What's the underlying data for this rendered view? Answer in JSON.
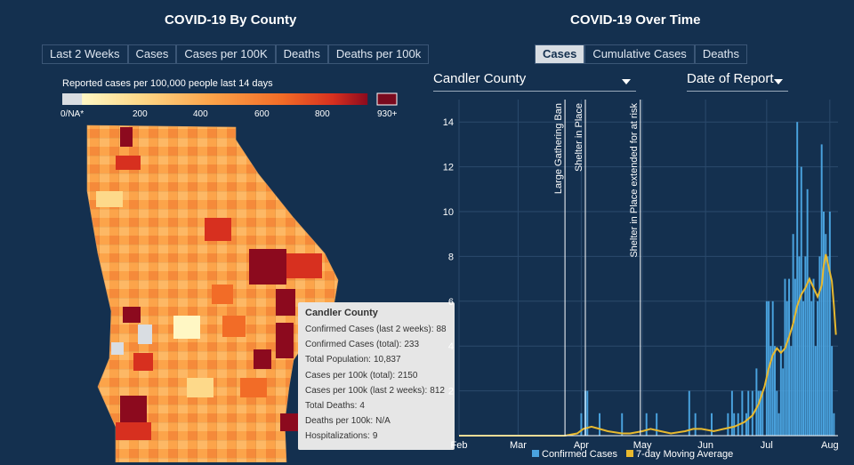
{
  "left": {
    "title": "COVID-19 By County",
    "tabs": [
      "Last 2 Weeks",
      "Cases",
      "Cases per 100K",
      "Deaths",
      "Deaths per 100k"
    ],
    "legend": {
      "title": "Reported cases per 100,000 people last 14 days",
      "na_label": "0/NA*",
      "ticks": [
        "200",
        "400",
        "600",
        "800"
      ],
      "max_label": "930+",
      "na_color": "#d9dde2",
      "scale_colors": [
        "#fff7c4",
        "#fdd98a",
        "#fca44a",
        "#f26c27",
        "#d7301f",
        "#8c0a1e"
      ],
      "max_color": "#7a0a1e"
    },
    "tooltip": {
      "header": "Candler County",
      "rows": [
        {
          "label": "Confirmed Cases (last 2 weeks):",
          "value": "88"
        },
        {
          "label": "Confirmed Cases (total):",
          "value": "233"
        },
        {
          "label": "Total Population:",
          "value": "10,837"
        },
        {
          "label": "Cases per 100k (total):",
          "value": "2150"
        },
        {
          "label": "Cases per 100k (last 2 weeks):",
          "value": "812"
        },
        {
          "label": "Total Deaths:",
          "value": "4"
        },
        {
          "label": "Deaths per 100k:",
          "value": "N/A"
        },
        {
          "label": "Hospitalizations:",
          "value": "9"
        }
      ]
    }
  },
  "right": {
    "title": "COVID-19 Over Time",
    "tabs": [
      "Cases",
      "Cumulative Cases",
      "Deaths"
    ],
    "active_tab": "Cases",
    "county_select": "Candler County",
    "date_select": "Date of Report"
  },
  "colors": {
    "background": "#14304f",
    "bar": "#4aa3df",
    "line": "#e8b92e",
    "grid": "#2b4a6c"
  },
  "chart_data": {
    "type": "bar",
    "title": "",
    "x_type": "date",
    "xlim": [
      "2020-02-01",
      "2020-08-05"
    ],
    "ylim": [
      0,
      15
    ],
    "y_ticks": [
      2,
      4,
      6,
      8,
      10,
      12,
      14
    ],
    "x_ticks": [
      {
        "date": "2020-02-01",
        "label": "Feb"
      },
      {
        "date": "2020-03-01",
        "label": "Mar"
      },
      {
        "date": "2020-04-01",
        "label": "Apr"
      },
      {
        "date": "2020-05-01",
        "label": "May"
      },
      {
        "date": "2020-06-01",
        "label": "Jun"
      },
      {
        "date": "2020-07-01",
        "label": "Jul"
      },
      {
        "date": "2020-08-01",
        "label": "Aug"
      }
    ],
    "grid": true,
    "legend_position": "bottom",
    "annotations": [
      {
        "date": "2020-03-24",
        "label": "Large Gathering Ban"
      },
      {
        "date": "2020-04-03",
        "label": "Shelter in Place"
      },
      {
        "date": "2020-04-30",
        "label": "Shelter in Place extended for at risk"
      }
    ],
    "series": [
      {
        "name": "Confirmed Cases",
        "kind": "bar",
        "dates": [
          "2020-04-01",
          "2020-04-03",
          "2020-04-04",
          "2020-04-10",
          "2020-04-21",
          "2020-05-03",
          "2020-05-08",
          "2020-05-24",
          "2020-05-27",
          "2020-06-04",
          "2020-06-12",
          "2020-06-14",
          "2020-06-15",
          "2020-06-17",
          "2020-06-19",
          "2020-06-21",
          "2020-06-22",
          "2020-06-24",
          "2020-06-26",
          "2020-06-27",
          "2020-06-28",
          "2020-06-29",
          "2020-07-01",
          "2020-07-02",
          "2020-07-03",
          "2020-07-04",
          "2020-07-05",
          "2020-07-06",
          "2020-07-07",
          "2020-07-08",
          "2020-07-09",
          "2020-07-10",
          "2020-07-11",
          "2020-07-12",
          "2020-07-13",
          "2020-07-14",
          "2020-07-15",
          "2020-07-16",
          "2020-07-17",
          "2020-07-18",
          "2020-07-19",
          "2020-07-20",
          "2020-07-21",
          "2020-07-22",
          "2020-07-23",
          "2020-07-24",
          "2020-07-25",
          "2020-07-26",
          "2020-07-27",
          "2020-07-28",
          "2020-07-29",
          "2020-07-30",
          "2020-07-31",
          "2020-08-01",
          "2020-08-02",
          "2020-08-03"
        ],
        "values": [
          1,
          2,
          2,
          1,
          1,
          1,
          1,
          2,
          1,
          1,
          1,
          2,
          1,
          1,
          2,
          1,
          2,
          2,
          3,
          2,
          2,
          2,
          6,
          6,
          4,
          6,
          4,
          2,
          1,
          4,
          3,
          7,
          6,
          7,
          4,
          9,
          7,
          14,
          8,
          12,
          6,
          8,
          11,
          7,
          6,
          7,
          4,
          6,
          8,
          13,
          10,
          9,
          8,
          10,
          4,
          1
        ]
      },
      {
        "name": "7-day Moving Average",
        "kind": "line",
        "dates": [
          "2020-02-01",
          "2020-03-24",
          "2020-03-30",
          "2020-04-02",
          "2020-04-06",
          "2020-04-10",
          "2020-04-14",
          "2020-04-21",
          "2020-04-25",
          "2020-05-01",
          "2020-05-05",
          "2020-05-10",
          "2020-05-15",
          "2020-05-22",
          "2020-05-26",
          "2020-05-30",
          "2020-06-05",
          "2020-06-10",
          "2020-06-15",
          "2020-06-20",
          "2020-06-24",
          "2020-06-27",
          "2020-06-30",
          "2020-07-02",
          "2020-07-04",
          "2020-07-06",
          "2020-07-08",
          "2020-07-10",
          "2020-07-12",
          "2020-07-14",
          "2020-07-16",
          "2020-07-18",
          "2020-07-20",
          "2020-07-22",
          "2020-07-24",
          "2020-07-26",
          "2020-07-28",
          "2020-07-29",
          "2020-07-30",
          "2020-08-01",
          "2020-08-02",
          "2020-08-03",
          "2020-08-04"
        ],
        "values": [
          0,
          0,
          0.1,
          0.3,
          0.4,
          0.3,
          0.2,
          0.1,
          0.1,
          0.2,
          0.3,
          0.2,
          0.1,
          0.2,
          0.3,
          0.3,
          0.2,
          0.3,
          0.4,
          0.6,
          0.9,
          1.4,
          2.2,
          3.0,
          3.6,
          3.9,
          3.7,
          3.9,
          4.4,
          5.0,
          5.8,
          6.3,
          6.6,
          7.0,
          6.6,
          6.2,
          6.7,
          7.6,
          8.1,
          7.3,
          6.9,
          5.8,
          4.5
        ]
      }
    ]
  }
}
